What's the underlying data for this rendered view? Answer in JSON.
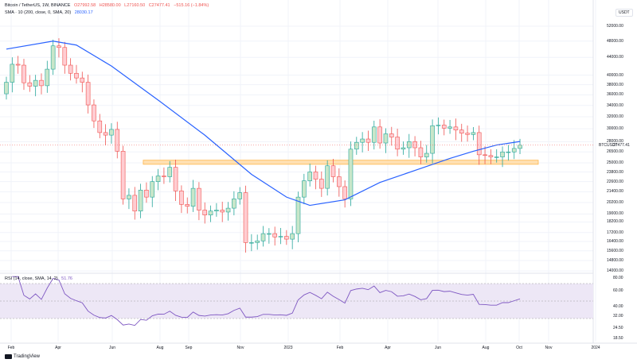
{
  "header": {
    "title": "Bitcoin / TetherUS, 1W, BINANCE",
    "open": "O27992.58",
    "high": "H28580.00",
    "low": "L27160.50",
    "close": "C27477.41",
    "change": "−515.16 (−1.84%)",
    "sma_label": "SMA · 10 (200, close, 0, SMA, 20)",
    "sma_value": "28030.17"
  },
  "rsi_legend": {
    "label": "RSI (14, close, SMA, 14, 2)",
    "value": "51.76"
  },
  "currency": "USDT",
  "price_labels": [
    "52000.00",
    "48000.00",
    "44000.00",
    "40000.00",
    "38000.00",
    "36000.00",
    "34000.00",
    "32000.00",
    "30000.00",
    "28000.00",
    "26500.00",
    "25000.00",
    "23800.00",
    "22600.00",
    "21400.00",
    "20200.00",
    "19000.00",
    "18200.00",
    "17200.00",
    "16400.00",
    "15600.00",
    "14800.00",
    "14000.00"
  ],
  "last_price": {
    "symbol": "BTCUSDT",
    "value": "27477.41"
  },
  "rsi_labels": [
    "80.00",
    "60.00",
    "40.00",
    "32.00",
    "24.50",
    "18.50"
  ],
  "time_labels": [
    "Feb",
    "Apr",
    "Jun",
    "Aug",
    "Sep",
    "Nov",
    "2023",
    "Feb",
    "Apr",
    "Jun",
    "Aug",
    "Oct",
    "Nov",
    "2024"
  ],
  "branding": "TradingView",
  "colors": {
    "up": "#26a69a",
    "down": "#ef5350",
    "sma": "#2962ff",
    "rsi": "#7e57c2",
    "zone": "#ffb74d"
  },
  "chart_data": {
    "type": "candlestick",
    "first_open": 36200,
    "closes": [
      38500,
      42400,
      42200,
      38400,
      37700,
      38900,
      37800,
      41300,
      46800,
      46400,
      42200,
      40400,
      39400,
      38500,
      34100,
      31300,
      29400,
      29000,
      29900,
      26600,
      20600,
      21000,
      19300,
      21600,
      20800,
      22600,
      23300,
      23200,
      24400,
      21500,
      20000,
      19800,
      21800,
      19400,
      18900,
      19300,
      19400,
      19200,
      19600,
      20600,
      21300,
      16300,
      16300,
      16450,
      17100,
      17100,
      16800,
      16850,
      16600,
      17100,
      20800,
      22700,
      23800,
      22900,
      21800,
      24600,
      23200,
      22000,
      20600,
      26900,
      27900,
      28400,
      27900,
      30300,
      27800,
      29200,
      28700,
      26900,
      27100,
      28000,
      27100,
      25800,
      26300,
      30500,
      30600,
      30100,
      30300,
      29800,
      29300,
      29100,
      29400,
      26100,
      26000,
      25800,
      25800,
      26500,
      26500,
      27000,
      27477.41
    ],
    "sma": [
      [
        0,
        46000
      ],
      [
        8,
        48000
      ],
      [
        12,
        47000
      ],
      [
        18,
        42000
      ],
      [
        26,
        35000
      ],
      [
        34,
        29000
      ],
      [
        42,
        23500
      ],
      [
        48,
        20800
      ],
      [
        52,
        19900
      ],
      [
        58,
        20500
      ],
      [
        64,
        22500
      ],
      [
        70,
        24000
      ],
      [
        76,
        25600
      ],
      [
        80,
        26600
      ],
      [
        84,
        27500
      ],
      [
        88,
        28030
      ]
    ],
    "support_zone": [
      24800,
      25350
    ],
    "zone_start_week": 24
  }
}
